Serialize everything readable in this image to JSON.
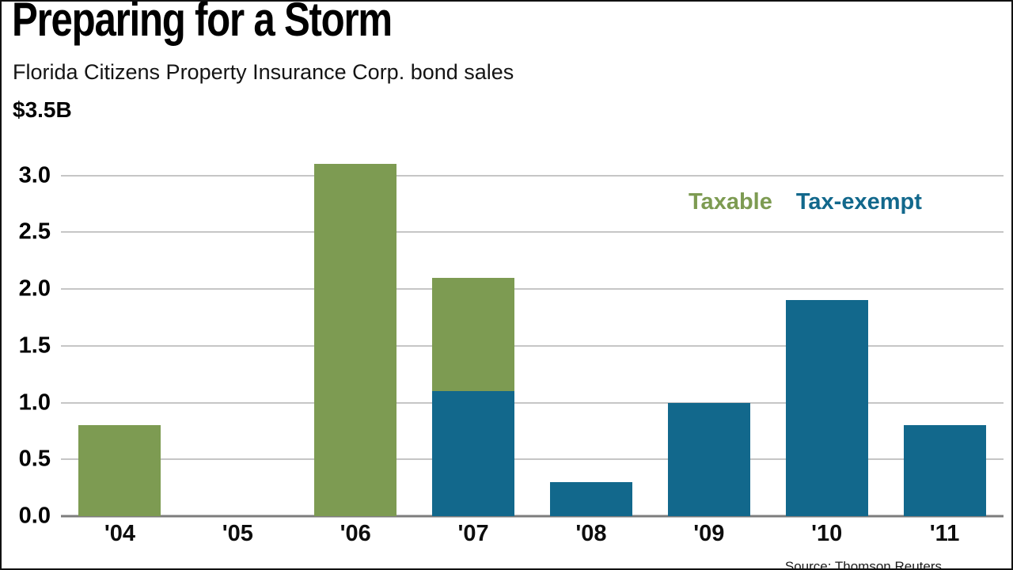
{
  "chart_data": {
    "type": "bar",
    "stacked": true,
    "title": "Preparing for a Storm",
    "subtitle": "Florida Citizens Property Insurance Corp. bond sales",
    "top_axis_label": "$3.5B",
    "ylim": [
      0,
      3.5
    ],
    "grid": true,
    "legend_position": "upper-right-inside",
    "categories": [
      "'04",
      "'05",
      "'06",
      "'07",
      "'08",
      "'09",
      "'10",
      "'11"
    ],
    "series": [
      {
        "name": "Tax-exempt",
        "color": "#12688c",
        "values": [
          0,
          0,
          0,
          1.1,
          0.3,
          1.0,
          1.9,
          0.8
        ]
      },
      {
        "name": "Taxable",
        "color": "#7d9b52",
        "values": [
          0.8,
          0,
          3.1,
          1.0,
          0,
          0,
          0,
          0
        ]
      }
    ],
    "legend": [
      {
        "label": "Taxable",
        "color": "#7d9b52"
      },
      {
        "label": "Tax-exempt",
        "color": "#12688c"
      }
    ],
    "yticks": [
      {
        "value": 3.0,
        "label": "3.0"
      },
      {
        "value": 2.5,
        "label": "2.5"
      },
      {
        "value": 2.0,
        "label": "2.0"
      },
      {
        "value": 1.5,
        "label": "1.5"
      },
      {
        "value": 1.0,
        "label": "1.0"
      },
      {
        "value": 0.5,
        "label": "0.5"
      },
      {
        "value": 0.0,
        "label": "0.0"
      }
    ],
    "source": "Source: Thomson Reuters"
  }
}
